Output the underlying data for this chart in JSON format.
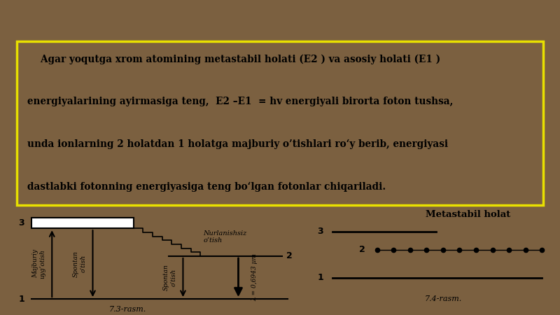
{
  "bg_color": "#7B6040",
  "purple_top": "#7B3B6E",
  "text_box_bg": "#C8BC98",
  "text_box_border": "#E8E000",
  "white_panel": "#FFFFFF",
  "fig73_caption": "7.3-rasm.",
  "fig74_caption": "7.4-rasm.",
  "metastabil_title": "Metastabil holat",
  "label_majburiy": "Majburiy\nuyg’otish",
  "label_spontan1": "Spontan\no’tish",
  "label_spontan2": "Spontan\no’tish",
  "label_nurlanishsiz": "Nurlanishsiz\no‘tish",
  "label_lambda": "λ = 0,6943 μm",
  "line1": "    Agar yoqutga xrom atomining metastabil holati (E2 ) va asosiy holati (E1 )",
  "line2": "energiyalarining ayirmasiga teng,  E2 –E1  = hv energiyali birorta foton tushsa,",
  "line3": "unda ionlarning 2 holatdan 1 holatga majburiy o’tishlari ro‘y berib, energiyasi",
  "line4": "dastlabki fotonning energiyasiga teng bo‘lgan fotonlar chiqariladi."
}
